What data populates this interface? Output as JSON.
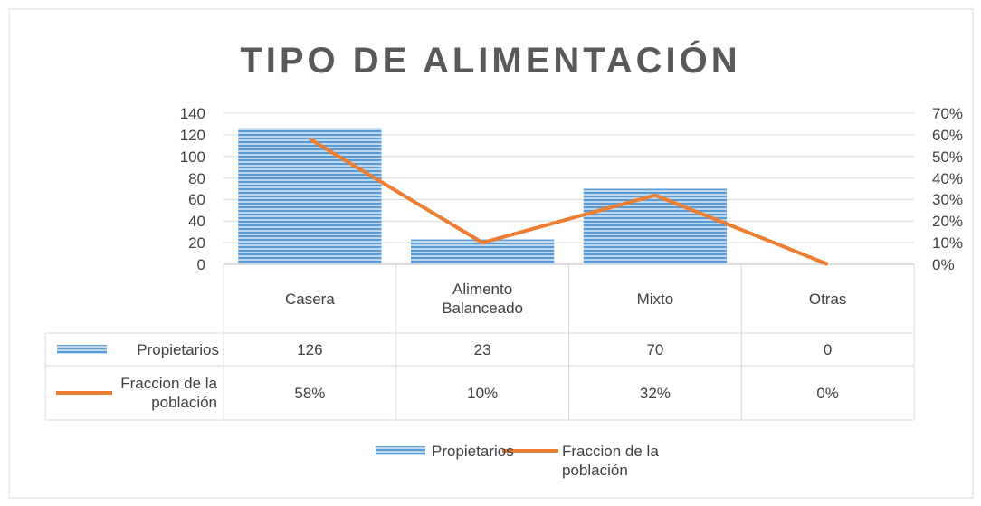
{
  "chart_data": {
    "type": "bar",
    "title": "TIPO DE ALIMENTACIÓN",
    "categories": [
      "Casera",
      "Alimento Balanceado",
      "Mixto",
      "Otras"
    ],
    "series": [
      {
        "name": "Propietarios",
        "type": "bar",
        "color": "#5b9bd5",
        "values": [
          126,
          23,
          70,
          0
        ]
      },
      {
        "name": "Fraccion de la población",
        "type": "line",
        "axis": "y2",
        "color": "#ed7d31",
        "values": [
          58,
          10,
          32,
          0
        ],
        "value_labels": [
          "58%",
          "10%",
          "32%",
          "0%"
        ]
      }
    ],
    "ylim": [
      0,
      140
    ],
    "yticks": [
      0,
      20,
      40,
      60,
      80,
      100,
      120,
      140
    ],
    "y2lim": [
      0,
      70
    ],
    "y2ticks": [
      {
        "value": 0,
        "label": "0%"
      },
      {
        "value": 10,
        "label": "10%"
      },
      {
        "value": 20,
        "label": "20%"
      },
      {
        "value": 30,
        "label": "30%"
      },
      {
        "value": 40,
        "label": "40%"
      },
      {
        "value": 50,
        "label": "50%"
      },
      {
        "value": 60,
        "label": "60%"
      },
      {
        "value": 70,
        "label": "70%"
      }
    ],
    "grid": true,
    "legend": "bottom"
  }
}
